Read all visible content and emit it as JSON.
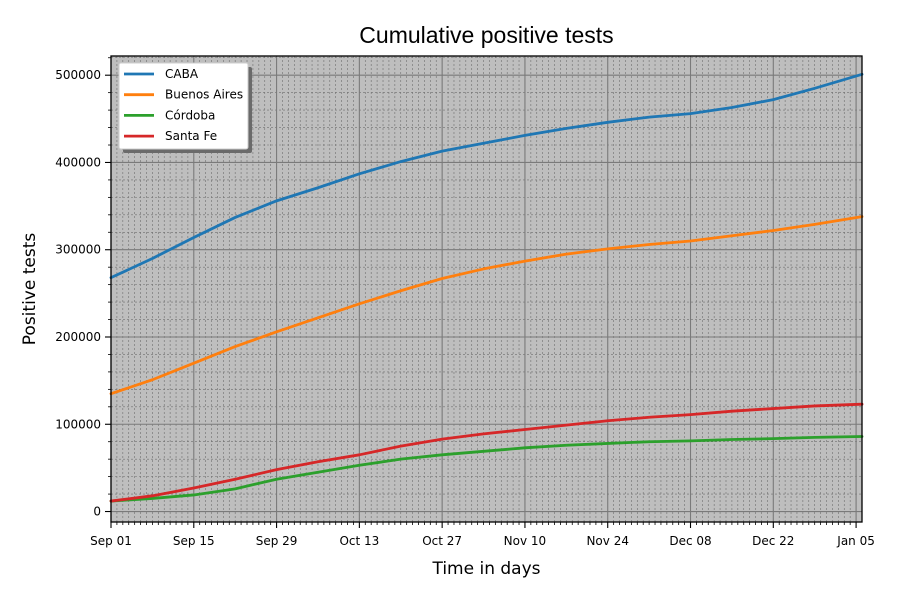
{
  "chart_data": {
    "type": "line",
    "title": "Cumulative positive tests",
    "xlabel": "Time in days",
    "ylabel": "Positive tests",
    "ylim": [
      -12000,
      522000
    ],
    "y_ticks": [
      0,
      100000,
      200000,
      300000,
      400000,
      500000
    ],
    "y_tick_labels": [
      "0",
      "100000",
      "200000",
      "300000",
      "400000",
      "500000"
    ],
    "x_range_dates": [
      "2020-09-01",
      "2021-01-06"
    ],
    "x_ticks": [
      "2020-09-01",
      "2020-09-15",
      "2020-09-29",
      "2020-10-13",
      "2020-10-27",
      "2020-11-10",
      "2020-11-24",
      "2020-12-08",
      "2020-12-22",
      "2021-01-05"
    ],
    "x_tick_labels": [
      "Sep 01",
      "Sep 15",
      "Sep 29",
      "Oct 13",
      "Oct 27",
      "Nov 10",
      "Nov 24",
      "Dec 08",
      "Dec 22",
      "Jan 05"
    ],
    "grid": true,
    "minor_grid": true,
    "legend_position": "top-left",
    "background_color": "#bebebe",
    "series": [
      {
        "name": "CABA",
        "color": "#1f77b4",
        "x": [
          "2020-09-01",
          "2020-09-08",
          "2020-09-15",
          "2020-09-22",
          "2020-09-29",
          "2020-10-06",
          "2020-10-13",
          "2020-10-20",
          "2020-10-27",
          "2020-11-03",
          "2020-11-10",
          "2020-11-17",
          "2020-11-24",
          "2020-12-01",
          "2020-12-08",
          "2020-12-15",
          "2020-12-22",
          "2020-12-29",
          "2021-01-06"
        ],
        "values": [
          268000,
          290000,
          314000,
          337000,
          356000,
          371000,
          387000,
          401000,
          413000,
          422000,
          431000,
          439000,
          446000,
          452000,
          456000,
          463000,
          472000,
          485000,
          501000
        ]
      },
      {
        "name": "Buenos Aires",
        "color": "#ff7f0e",
        "x": [
          "2020-09-01",
          "2020-09-08",
          "2020-09-15",
          "2020-09-22",
          "2020-09-29",
          "2020-10-06",
          "2020-10-13",
          "2020-10-20",
          "2020-10-27",
          "2020-11-03",
          "2020-11-10",
          "2020-11-17",
          "2020-11-24",
          "2020-12-01",
          "2020-12-08",
          "2020-12-15",
          "2020-12-22",
          "2020-12-29",
          "2021-01-06"
        ],
        "values": [
          135000,
          151000,
          170000,
          189000,
          206000,
          222000,
          238000,
          253000,
          267000,
          278000,
          287000,
          295000,
          301000,
          306000,
          310000,
          316000,
          322000,
          329000,
          338000
        ]
      },
      {
        "name": "Córdoba",
        "color": "#2ca02c",
        "x": [
          "2020-09-01",
          "2020-09-08",
          "2020-09-15",
          "2020-09-22",
          "2020-09-29",
          "2020-10-06",
          "2020-10-13",
          "2020-10-20",
          "2020-10-27",
          "2020-11-03",
          "2020-11-10",
          "2020-11-17",
          "2020-11-24",
          "2020-12-01",
          "2020-12-08",
          "2020-12-15",
          "2020-12-22",
          "2020-12-29",
          "2021-01-06"
        ],
        "values": [
          12000,
          15000,
          19000,
          26000,
          37000,
          45000,
          53000,
          60000,
          65000,
          69000,
          73000,
          76000,
          78000,
          80000,
          81000,
          82500,
          83500,
          85000,
          86000
        ]
      },
      {
        "name": "Santa Fe",
        "color": "#d62728",
        "x": [
          "2020-09-01",
          "2020-09-08",
          "2020-09-15",
          "2020-09-22",
          "2020-09-29",
          "2020-10-06",
          "2020-10-13",
          "2020-10-20",
          "2020-10-27",
          "2020-11-03",
          "2020-11-10",
          "2020-11-17",
          "2020-11-24",
          "2020-12-01",
          "2020-12-08",
          "2020-12-15",
          "2020-12-22",
          "2020-12-29",
          "2021-01-06"
        ],
        "values": [
          12000,
          18000,
          27000,
          37000,
          48000,
          57000,
          65000,
          75000,
          83000,
          89000,
          94000,
          99000,
          104000,
          108000,
          111000,
          115000,
          118000,
          121000,
          123000
        ]
      }
    ]
  }
}
